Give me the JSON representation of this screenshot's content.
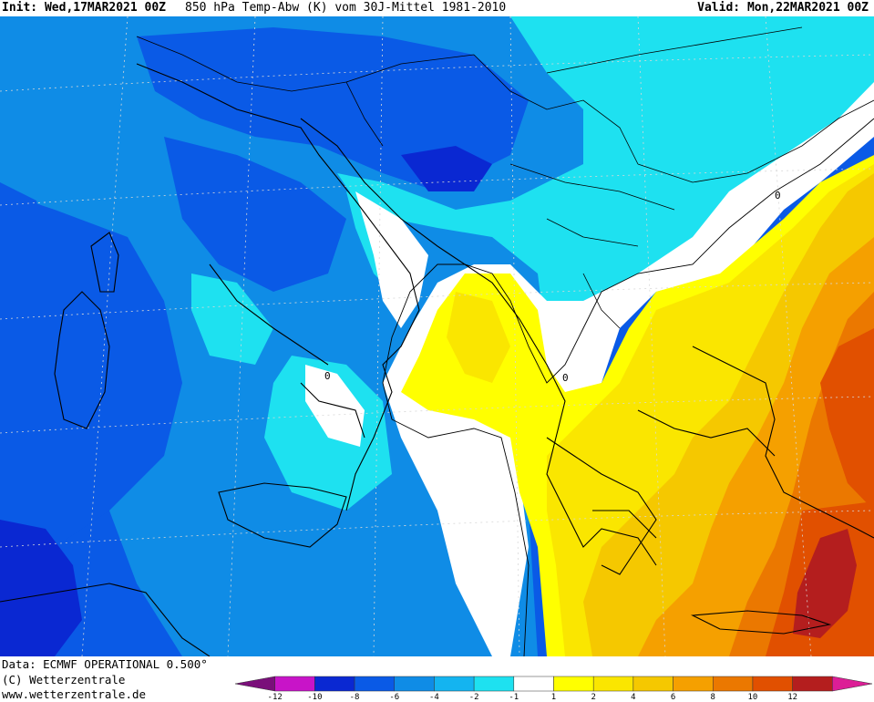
{
  "header": {
    "init": "Init: Wed,17MAR2021 00Z",
    "title": "850 hPa Temp-Abw (K) vom 30J-Mittel 1981-2010",
    "valid": "Valid: Mon,22MAR2021 00Z"
  },
  "footer": {
    "data_source": "Data: ECMWF OPERATIONAL 0.500°",
    "copyright": "(C) Wetterzentrale",
    "url": "www.wetterzentrale.de"
  },
  "legend": {
    "colors": [
      "#7a0f7a",
      "#c814c8",
      "#0a28d2",
      "#0a5ae6",
      "#0f8ce6",
      "#14b4f0",
      "#1ee1f0",
      "#ffffff",
      "#ffff00",
      "#fae600",
      "#f5c800",
      "#f5a000",
      "#eb7800",
      "#e15000",
      "#b41e1e",
      "#dc1e96"
    ],
    "ticks": [
      "-12",
      "-10",
      "-8",
      "-6",
      "-4",
      "-2",
      "-1",
      "1",
      "2",
      "4",
      "6",
      "8",
      "10",
      "12"
    ]
  },
  "map": {
    "region": "Central Mediterranean / Balkans",
    "zero_labels": [
      "0",
      "0",
      "0"
    ]
  }
}
